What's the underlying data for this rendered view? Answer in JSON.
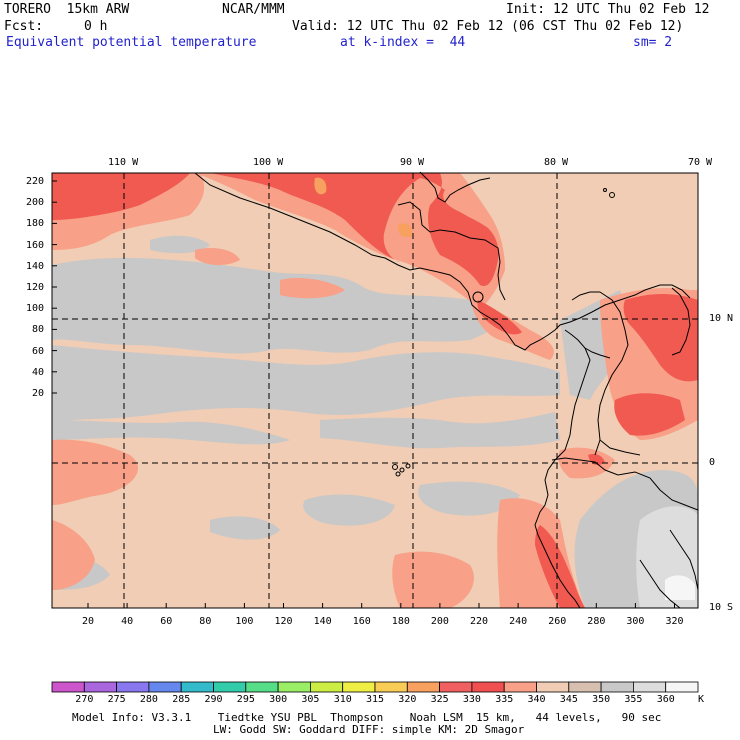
{
  "header": {
    "model": "TORERO  15km ARW",
    "org": "NCAR/MMM",
    "init": "Init: 12 UTC Thu 02 Feb 12",
    "fcst_label": "Fcst:",
    "fcst_value": "0 h",
    "valid": "Valid: 12 UTC Thu 02 Feb 12 (06 CST Thu 02 Feb 12)",
    "field": "Equivalent potential temperature",
    "level": "at k-index =  44",
    "smoothing": "sm= 2"
  },
  "map": {
    "lon_labels": [
      "110 W",
      "100 W",
      "90 W",
      "80 W",
      "70 W"
    ],
    "lat_labels": [
      "10 N",
      "0",
      "10 S"
    ],
    "left_axis_ticks": [
      "220",
      "200",
      "180",
      "160",
      "140",
      "120",
      "100",
      "80",
      "60",
      "40",
      "20"
    ],
    "bottom_axis_ticks": [
      "20",
      "40",
      "60",
      "80",
      "100",
      "120",
      "140",
      "160",
      "180",
      "200",
      "220",
      "240",
      "260",
      "280",
      "300",
      "320"
    ],
    "grid": "dashed lat/lon lines",
    "colors": {
      "cool_gray": "#c8c8c8",
      "warm_tan": "#f0cdb4",
      "salmon": "#f8a088",
      "red": "#f05a50"
    }
  },
  "colorbar": {
    "labels": [
      "270",
      "275",
      "280",
      "285",
      "290",
      "295",
      "300",
      "305",
      "310",
      "315",
      "320",
      "325",
      "330",
      "335",
      "340",
      "345",
      "350",
      "355",
      "360"
    ],
    "unit": "K",
    "colors": [
      "#cc55cc",
      "#aa66dd",
      "#8877ee",
      "#6688ee",
      "#33bbcc",
      "#33ccaa",
      "#55dd88",
      "#99ee66",
      "#ccee44",
      "#eeee44",
      "#f8cc55",
      "#f8a060",
      "#f06060",
      "#f05050",
      "#f8a088",
      "#f0cdb4",
      "#d8c0b0",
      "#c8c8c8",
      "#dddddd",
      "#f6f6f6"
    ]
  },
  "footer": {
    "line1": "Model Info: V3.3.1    Tiedtke YSU PBL  Thompson    Noah LSM  15 km,   44 levels,   90 sec",
    "line2": "LW: Godd SW: Goddard DIFF: simple KM: 2D Smagor"
  }
}
